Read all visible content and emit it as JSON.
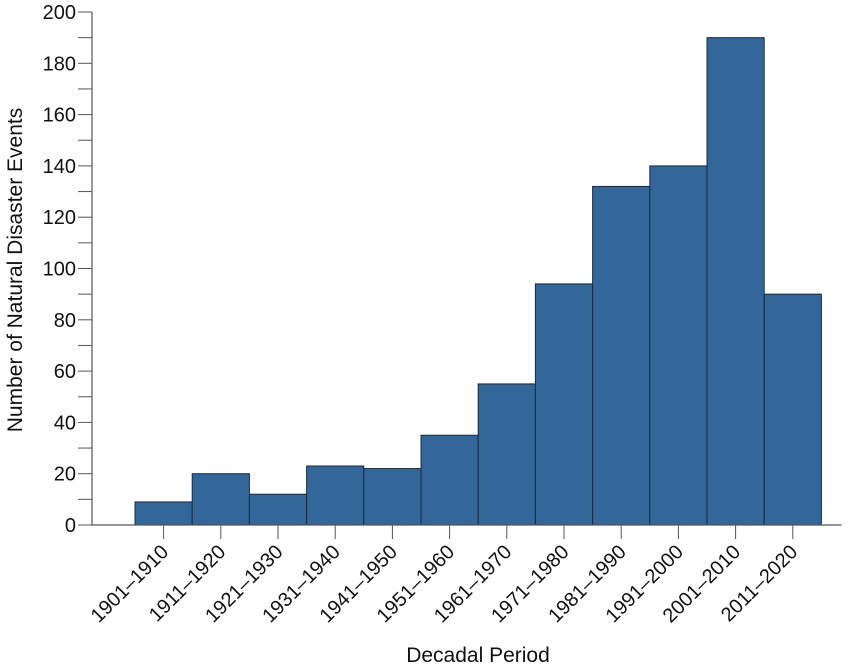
{
  "chart_data": {
    "type": "bar",
    "categories": [
      "1901–1910",
      "1911–1920",
      "1921–1930",
      "1931–1940",
      "1941–1950",
      "1951–1960",
      "1961–1970",
      "1971–1980",
      "1981–1990",
      "1991–2000",
      "2001–2010",
      "2011–2020"
    ],
    "values": [
      9,
      20,
      12,
      23,
      22,
      35,
      55,
      94,
      132,
      140,
      190,
      90
    ],
    "title": "",
    "xlabel": "Decadal Period",
    "ylabel": "Number of Natural Disaster Events",
    "ylim": [
      0,
      200
    ],
    "yticks": [
      0,
      20,
      40,
      60,
      80,
      100,
      120,
      140,
      160,
      180,
      200
    ],
    "grid": false,
    "colors": {
      "bar_fill": "#336699",
      "bar_edge": "#1a2a3f",
      "axis": "#555555"
    }
  }
}
